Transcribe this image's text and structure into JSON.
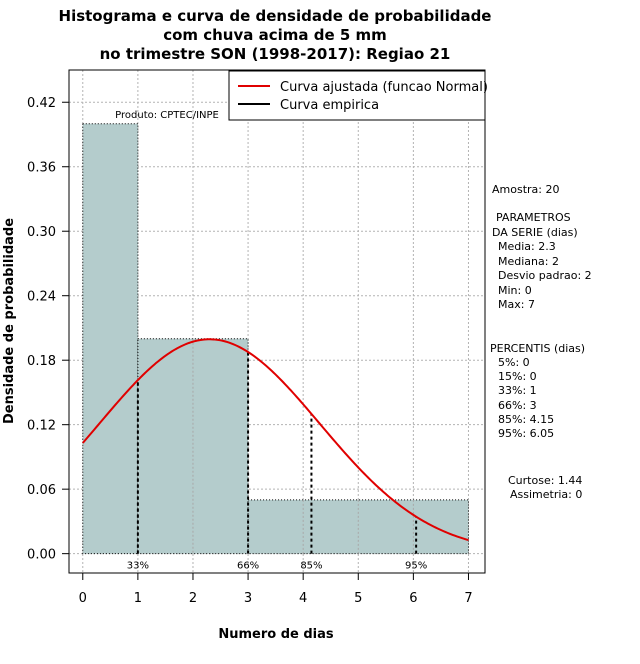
{
  "chart_data": {
    "type": "bar",
    "title_lines": [
      "Histograma e curva de densidade de probabilidade",
      "com chuva acima de 5 mm",
      "no trimestre SON (1998-2017): Regiao 21"
    ],
    "xlabel": "Numero de dias",
    "ylabel": "Densidade de probabilidade",
    "xlim": [
      -0.25,
      7.3
    ],
    "ylim": [
      -0.018,
      0.45
    ],
    "x_ticks": [
      "0",
      "1",
      "2",
      "3",
      "4",
      "5",
      "6",
      "7"
    ],
    "y_ticks": [
      "0.00",
      "0.06",
      "0.12",
      "0.18",
      "0.24",
      "0.30",
      "0.36",
      "0.42"
    ],
    "bins": [
      {
        "from": 0,
        "to": 1,
        "density": 0.4
      },
      {
        "from": 1,
        "to": 3,
        "density": 0.2
      },
      {
        "from": 3,
        "to": 7,
        "density": 0.05
      }
    ],
    "fitted_curve": {
      "distribution": "Normal",
      "mean": 2.3,
      "sd": 2.0,
      "color": "#e00000"
    },
    "percentile_markers": [
      {
        "label": "33%",
        "x": 1
      },
      {
        "label": "66%",
        "x": 3
      },
      {
        "label": "85%",
        "x": 4.15
      },
      {
        "label": "95%",
        "x": 6.05
      }
    ],
    "legend": [
      {
        "label": "Curva ajustada (funcao Normal)",
        "color": "#e00000"
      },
      {
        "label": "Curva empirica",
        "color": "#000000"
      }
    ],
    "credit": "Produto: CPTEC/INPE",
    "bar_color": "#b4cccc",
    "stats_panel": {
      "sample": "Amostra: 20",
      "params_title_1": "PARAMETROS",
      "params_title_2": "DA SERIE (dias)",
      "params": [
        "Media: 2.3",
        "Mediana: 2",
        "Desvio padrao: 2",
        "Min: 0",
        "Max: 7"
      ],
      "percentis_title": "PERCENTIS (dias)",
      "percentis": [
        "5%: 0",
        "15%: 0",
        "33%: 1",
        "66%: 3",
        "85%: 4.15",
        "95%: 6.05"
      ],
      "curtose": "Curtose: 1.44",
      "assimetria": "Assimetria: 0"
    }
  }
}
